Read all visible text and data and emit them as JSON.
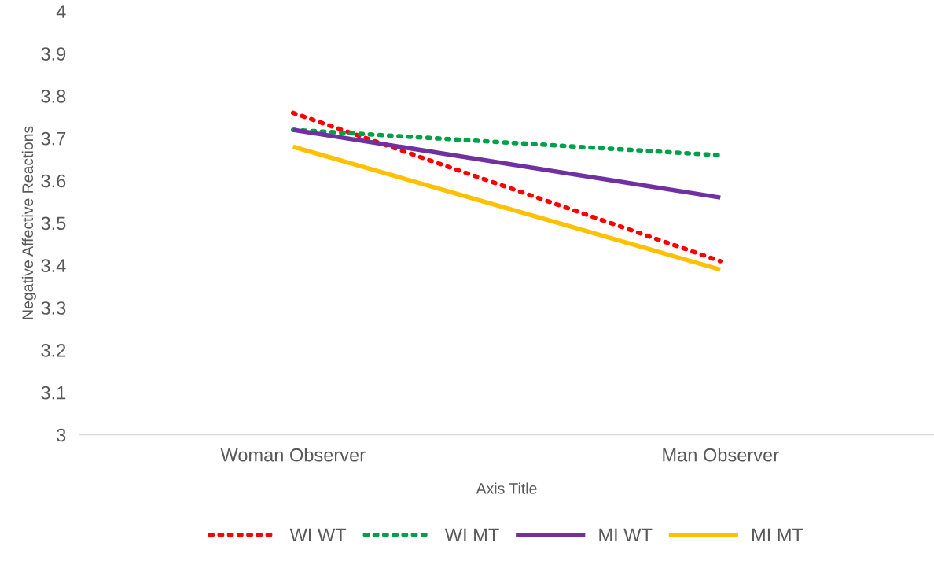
{
  "chart_data": {
    "type": "line",
    "xlabel": "Axis Title",
    "ylabel": "Negative Affective Reactions",
    "categories": [
      "Woman Observer",
      "Man Observer"
    ],
    "series": [
      {
        "name": "WI WT",
        "color": "#ff0000",
        "values": [
          3.76,
          3.41
        ],
        "line_style": "dotted"
      },
      {
        "name": "WI MT",
        "color": "#00a04a",
        "values": [
          3.72,
          3.66
        ],
        "line_style": "dotted"
      },
      {
        "name": "MI WT",
        "color": "#7030a0",
        "values": [
          3.72,
          3.56
        ],
        "line_style": "solid"
      },
      {
        "name": "MI MT",
        "color": "#ffc000",
        "values": [
          3.68,
          3.39
        ],
        "line_style": "solid"
      }
    ],
    "ylim": [
      3,
      4
    ],
    "yticks": [
      3,
      3.1,
      3.2,
      3.3,
      3.4,
      3.5,
      3.6,
      3.7,
      3.8,
      3.9,
      4
    ],
    "grid": false,
    "legend": "bottom",
    "marker": "none"
  }
}
